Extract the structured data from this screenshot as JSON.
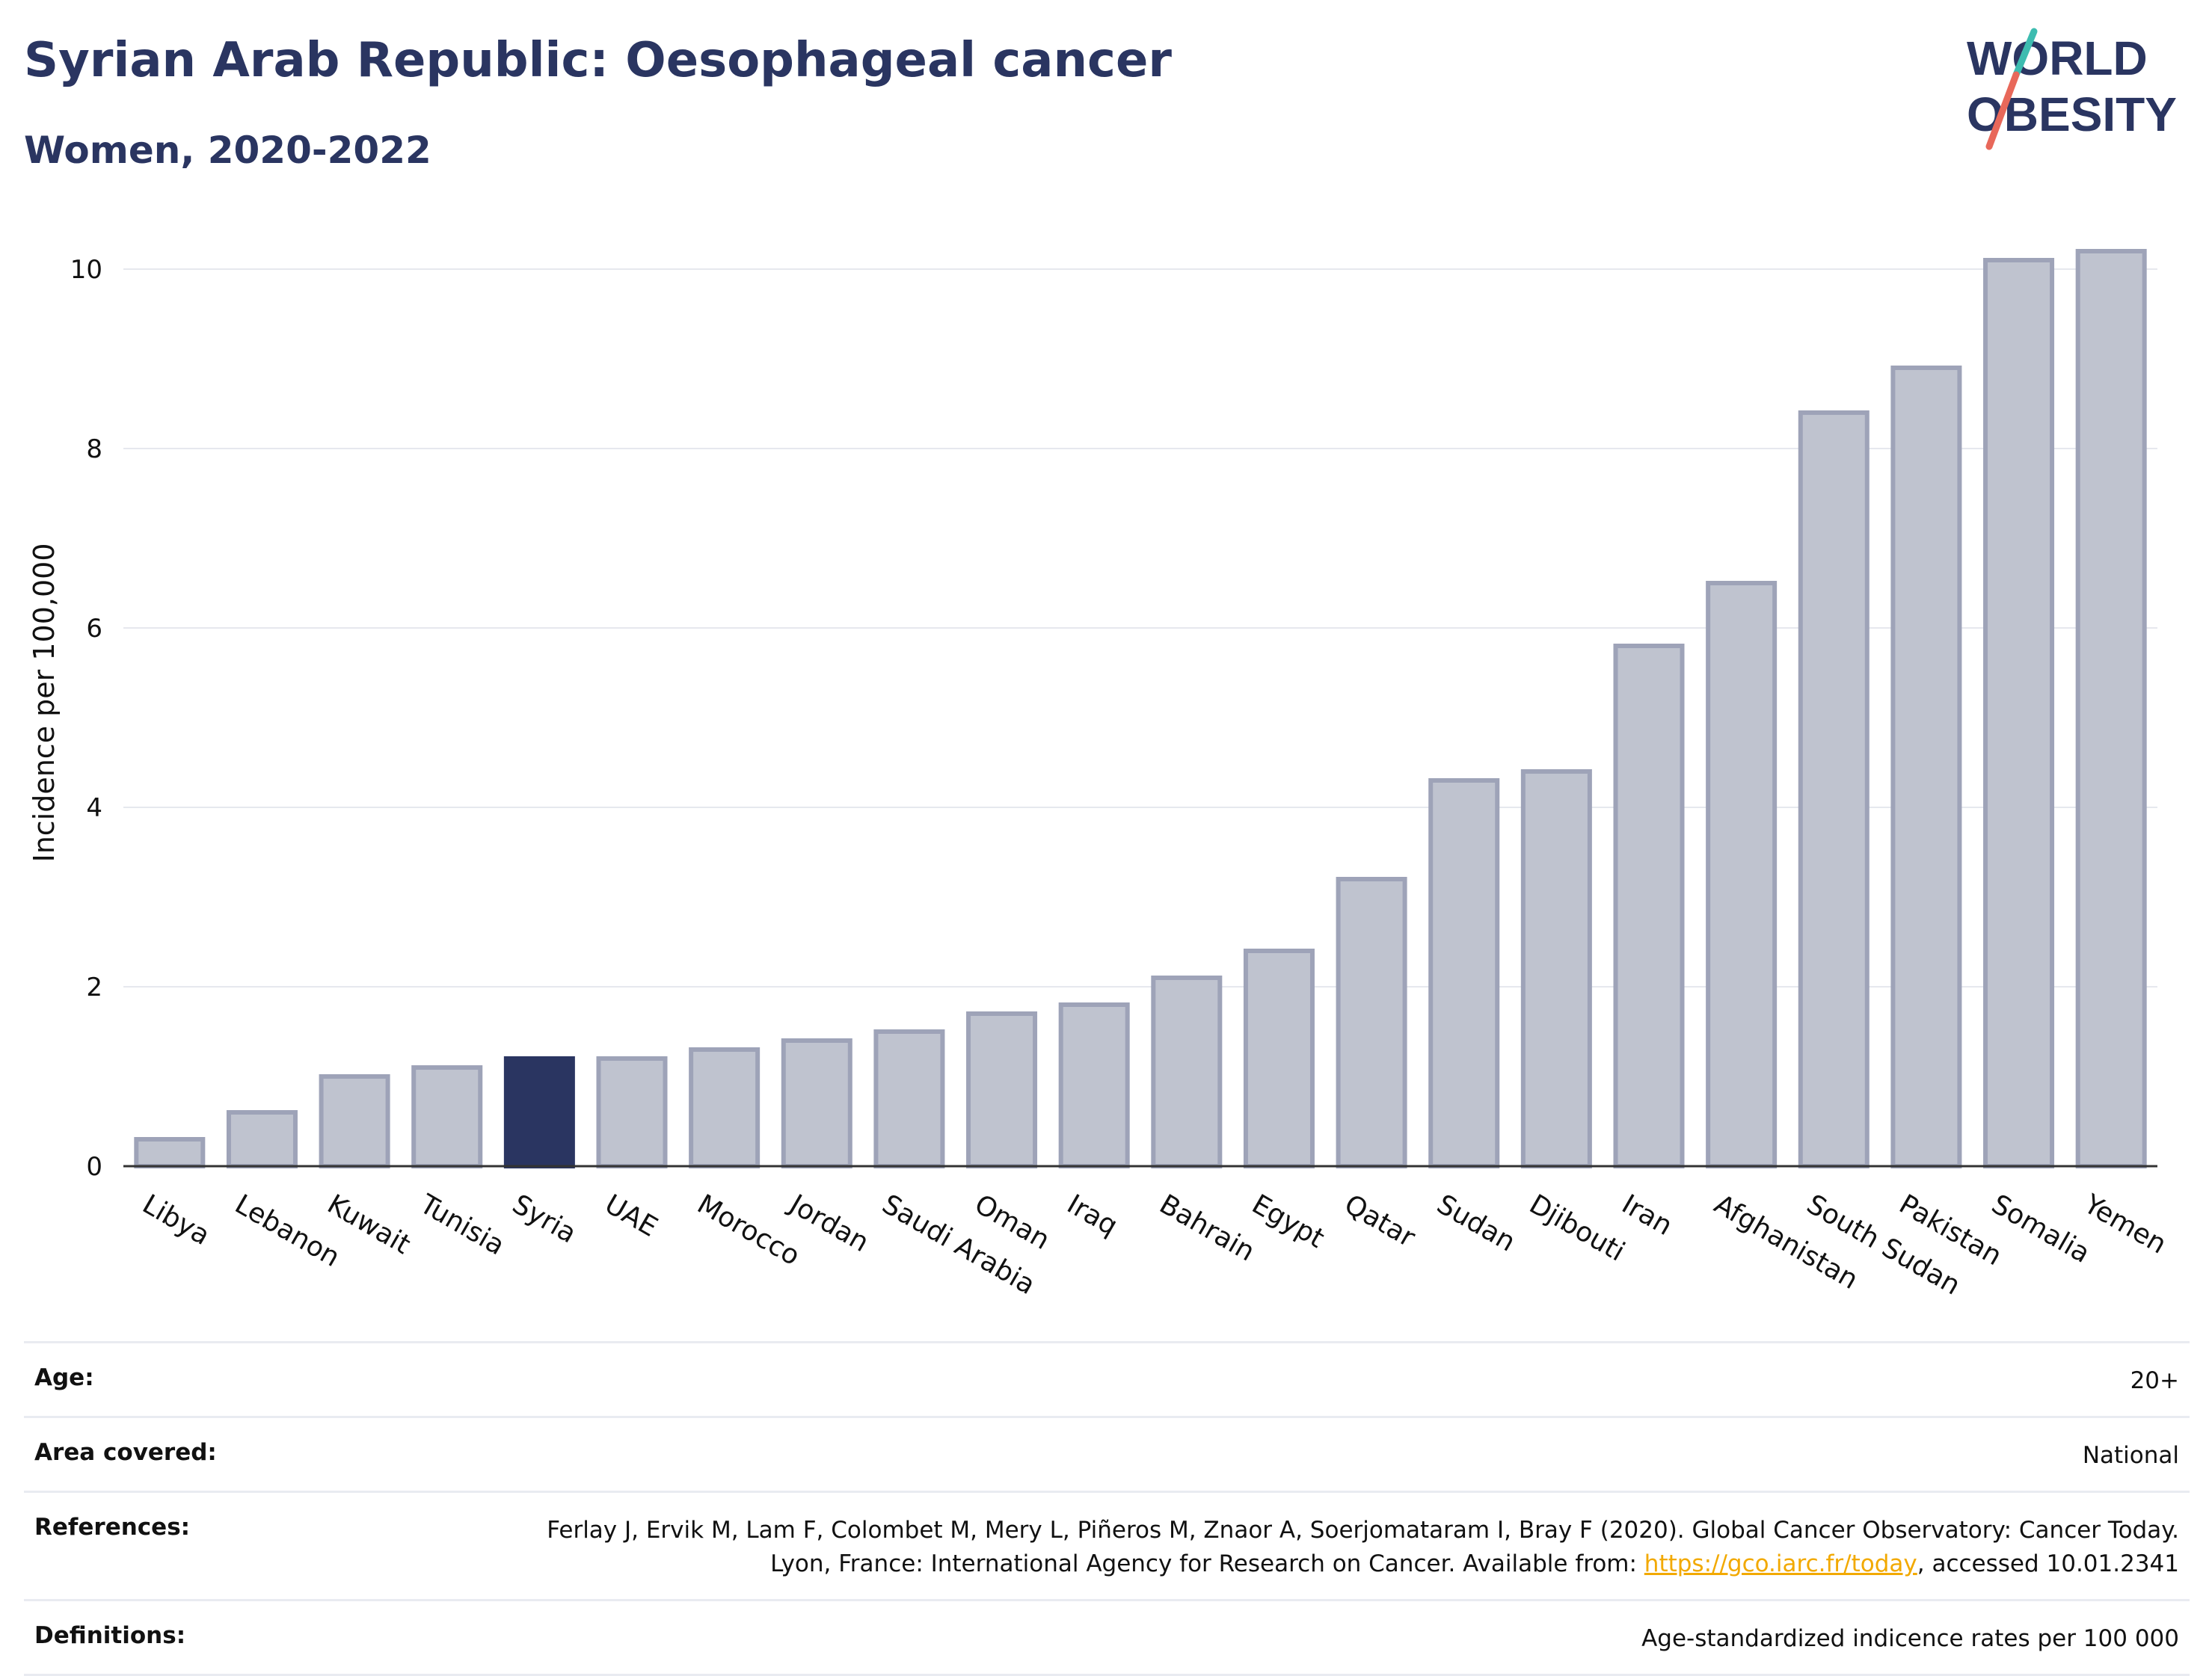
{
  "header": {
    "title": "Syrian Arab Republic: Oesophageal cancer",
    "subtitle": "Women, 2020-2022"
  },
  "logo": {
    "line1": "WORLD",
    "line2": "OBESITY",
    "accent_teal": "#3dbcb0",
    "accent_red": "#e8685a",
    "text_color": "#2a3561"
  },
  "colors": {
    "bar_default_fill": "#bfc3cf",
    "bar_default_stroke": "#9ea3b8",
    "bar_highlight": "#2a3561",
    "grid": "#e6e8ee"
  },
  "chart_data": {
    "type": "bar",
    "ylabel": "Incidence per 100,000",
    "ylim": [
      0,
      10.5
    ],
    "yticks": [
      0,
      2,
      4,
      6,
      8,
      10
    ],
    "grid": true,
    "highlight": "Syria",
    "categories": [
      "Libya",
      "Lebanon",
      "Kuwait",
      "Tunisia",
      "Syria",
      "UAE",
      "Morocco",
      "Jordan",
      "Saudi Arabia",
      "Oman",
      "Iraq",
      "Bahrain",
      "Egypt",
      "Qatar",
      "Sudan",
      "Djibouti",
      "Iran",
      "Afghanistan",
      "South Sudan",
      "Pakistan",
      "Somalia",
      "Yemen"
    ],
    "values": [
      0.3,
      0.6,
      1.0,
      1.1,
      1.2,
      1.2,
      1.3,
      1.4,
      1.5,
      1.7,
      1.8,
      2.1,
      2.4,
      3.2,
      4.3,
      4.4,
      5.8,
      6.5,
      8.4,
      8.9,
      10.1,
      10.2
    ]
  },
  "meta": [
    {
      "label": "Age:",
      "value": "20+"
    },
    {
      "label": "Area covered:",
      "value": "National"
    },
    {
      "label": "References:",
      "value_pre": "Ferlay J, Ervik M, Lam F, Colombet M, Mery L, Piñeros M, Znaor A, Soerjomataram I, Bray F (2020). Global Cancer Observatory: Cancer Today. Lyon, France: International Agency for Research on Cancer. Available from: ",
      "link": "https://gco.iarc.fr/today",
      "value_post": ", accessed 10.01.2341"
    },
    {
      "label": "Definitions:",
      "value": "Age-standardized indicence rates per 100 000"
    }
  ]
}
